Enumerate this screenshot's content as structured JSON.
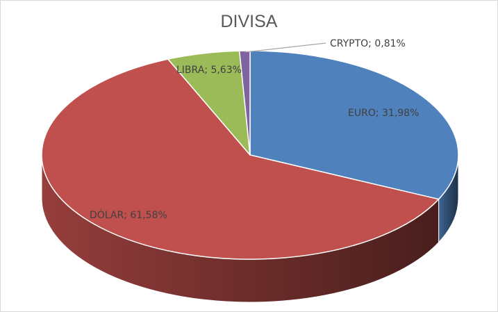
{
  "chart_data": {
    "type": "pie",
    "title": "DIVISA",
    "style": "3d-pie",
    "slices": [
      {
        "name": "EURO",
        "value": 31.98,
        "label": "EURO; 31,98%",
        "color": "#4f81bd"
      },
      {
        "name": "DÓLAR",
        "value": 61.58,
        "label": "DÓLAR; 61,58%",
        "color": "#c0504d"
      },
      {
        "name": "LIBRA",
        "value": 5.63,
        "label": "LIBRA; 5,63%",
        "color": "#9bbb59"
      },
      {
        "name": "CRYPTO",
        "value": 0.81,
        "label": "CRYPTO; 0,81%",
        "color": "#8064a2"
      }
    ]
  }
}
